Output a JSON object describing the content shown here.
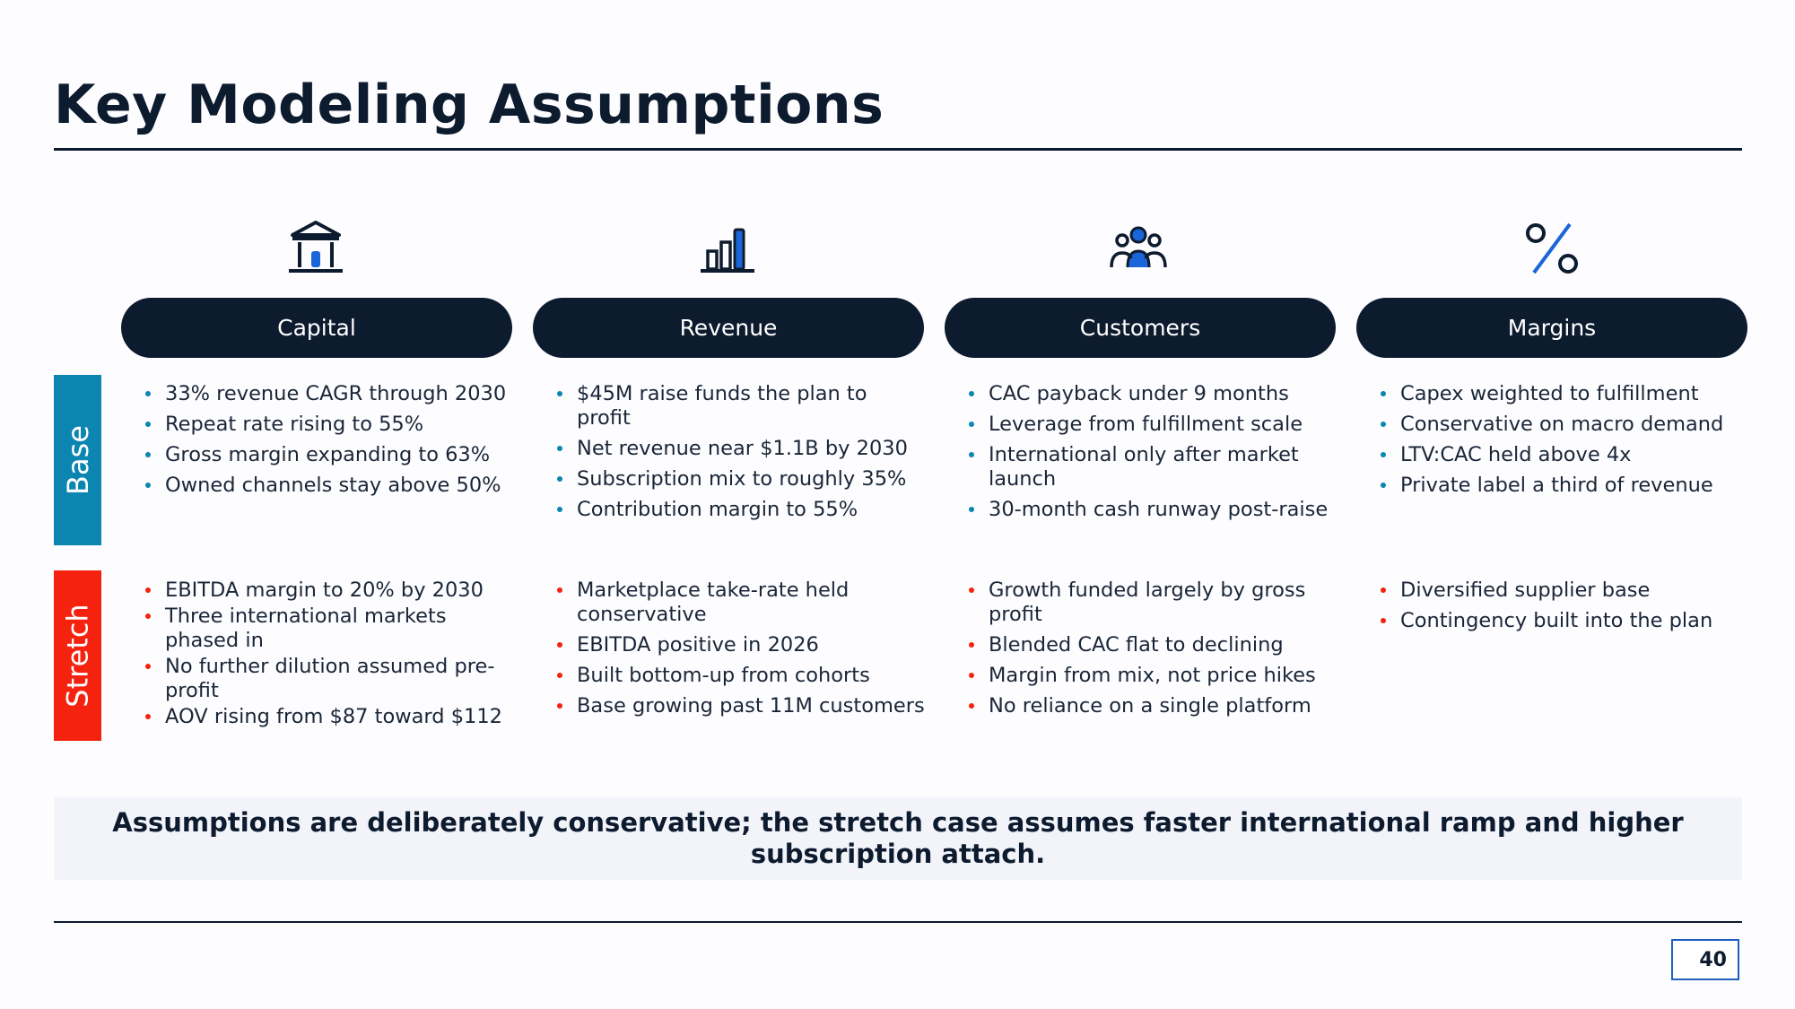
{
  "title": "Key Modeling Assumptions",
  "columns": [
    {
      "label": "Capital",
      "icon": "bank-icon",
      "base": [
        "33% revenue CAGR through 2030",
        "Repeat rate rising to 55%",
        "Gross margin expanding to 63%",
        "Owned channels stay above 50%"
      ],
      "stretch": [
        "EBITDA margin to 20% by 2030",
        "Three international markets phased in",
        "No further dilution assumed pre-profit",
        "AOV rising from $87 toward $112"
      ]
    },
    {
      "label": "Revenue",
      "icon": "bar-chart-icon",
      "base": [
        "$45M raise funds the plan to profit",
        "Net revenue near $1.1B by 2030",
        "Subscription mix to roughly 35%",
        "Contribution margin to 55%"
      ],
      "stretch": [
        "Marketplace take-rate held conservative",
        "EBITDA positive in 2026",
        "Built bottom-up from cohorts",
        "Base growing past 11M customers"
      ]
    },
    {
      "label": "Customers",
      "icon": "people-group-icon",
      "base": [
        "CAC payback under 9 months",
        "Leverage from fulfillment scale",
        "International only after market launch",
        "30-month cash runway post-raise"
      ],
      "stretch": [
        "Growth funded largely by gross profit",
        "Blended CAC flat to declining",
        "Margin from mix, not price hikes",
        "No reliance on a single platform"
      ]
    },
    {
      "label": "Margins",
      "icon": "percent-icon",
      "base": [
        "Capex weighted to fulfillment",
        "Conservative on macro demand",
        "LTV:CAC held above 4x",
        "Private label a third of revenue"
      ],
      "stretch": [
        "Diversified supplier base",
        "Contingency built into the plan"
      ]
    }
  ],
  "rows": {
    "base_label": "Base",
    "stretch_label": "Stretch"
  },
  "callout": "Assumptions are deliberately conservative; the stretch case assumes faster international ramp and higher subscription attach.",
  "page_number": "40",
  "colors": {
    "navy": "#0d1b2e",
    "base": "#0a86b0",
    "stretch": "#f5220f",
    "accent_blue": "#1a66d9"
  }
}
